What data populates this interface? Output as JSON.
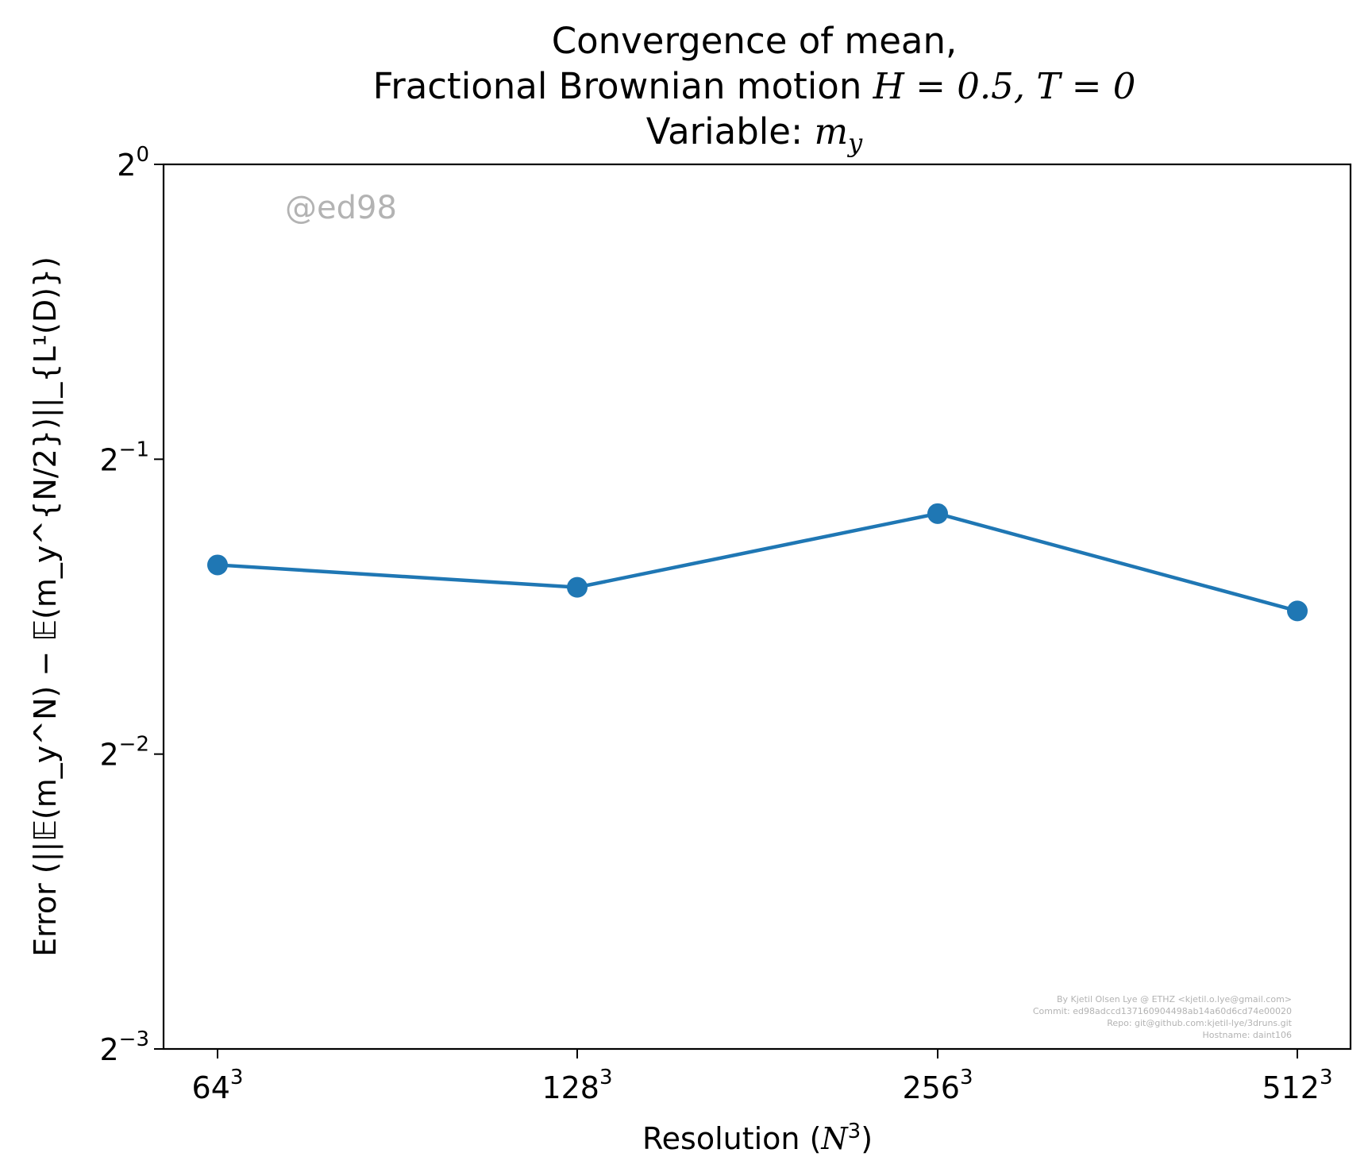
{
  "chart_data": {
    "type": "line",
    "title": {
      "line1": "Convergence of mean,",
      "line2_prefix": "Fractional Brownian motion ",
      "line2_math": "H = 0.5, T = 0",
      "line3_prefix": "Variable: ",
      "line3_math": "m",
      "line3_sub": "y"
    },
    "xlabel": {
      "prefix": "Resolution (",
      "math": "N",
      "sup": "3",
      "suffix": ")"
    },
    "ylabel": "Error (||𝔼(m_y^N) − 𝔼(m_y^{N/2})||_{L¹(D)})",
    "x_ticks": [
      {
        "base": "64",
        "exp": "3"
      },
      {
        "base": "128",
        "exp": "3"
      },
      {
        "base": "256",
        "exp": "3"
      },
      {
        "base": "512",
        "exp": "3"
      }
    ],
    "y_ticks": [
      {
        "base": "2",
        "exp": "0"
      },
      {
        "base": "2",
        "exp": "−1"
      },
      {
        "base": "2",
        "exp": "−2"
      },
      {
        "base": "2",
        "exp": "−3"
      }
    ],
    "y_scale": "log2",
    "ylim": [
      0.125,
      1
    ],
    "series": [
      {
        "values": [
          0.39,
          0.37,
          0.44,
          0.35
        ],
        "color": "#1f77b4"
      }
    ],
    "grid": false,
    "watermark": "@ed98",
    "credit_lines": [
      "By Kjetil Olsen Lye @ ETHZ <kjetil.o.lye@gmail.com>",
      "Commit: ed98adccd137160904498ab14a60d6cd74e00020",
      "Repo: git@github.com:kjetil-lye/3druns.git",
      "Hostname: daint106"
    ]
  }
}
